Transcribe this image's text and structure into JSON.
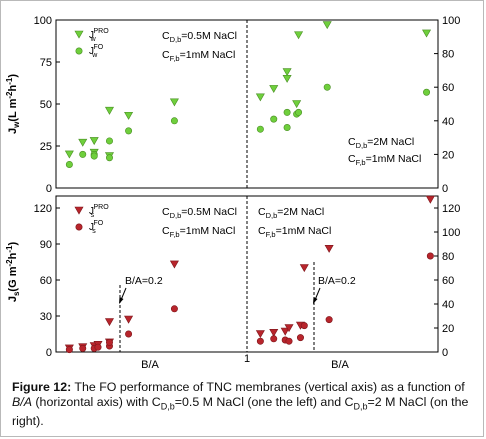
{
  "chart_data": [
    {
      "type": "scatter",
      "panel": "top-left",
      "ylabel": "J_w(L m^-2 h^-1)",
      "ylim": [
        0,
        100
      ],
      "yticks": [
        0,
        25,
        50,
        75,
        100
      ],
      "annotations": [
        "C_D,b=0.5M NaCl",
        "C_F,b=1mM NaCl"
      ],
      "series": [
        {
          "name": "J_w^PRO",
          "marker": "triangle-down",
          "color": "#6fcf3c",
          "x": [
            0.07,
            0.14,
            0.2,
            0.2,
            0.28,
            0.28,
            0.38,
            0.62
          ],
          "y": [
            20,
            27,
            28,
            21,
            19,
            46,
            43,
            51
          ]
        },
        {
          "name": "J_w^FO",
          "marker": "circle",
          "color": "#6fcf3c",
          "x": [
            0.07,
            0.14,
            0.2,
            0.2,
            0.28,
            0.28,
            0.38,
            0.62
          ],
          "y": [
            14,
            20,
            20,
            19,
            18,
            28,
            34,
            40
          ]
        }
      ]
    },
    {
      "type": "scatter",
      "panel": "top-right",
      "ylim": [
        0,
        100
      ],
      "yticks": [
        0,
        20,
        40,
        60,
        80,
        100
      ],
      "annotations": [
        "C_D,b=2M NaCl",
        "C_F,b=1mM NaCl"
      ],
      "series": [
        {
          "name": "J_w^PRO",
          "marker": "triangle-down",
          "color": "#6fcf3c",
          "x": [
            0.07,
            0.14,
            0.21,
            0.21,
            0.26,
            0.27,
            0.42,
            0.94
          ],
          "y": [
            54,
            59,
            69,
            65,
            50,
            91,
            97,
            92
          ]
        },
        {
          "name": "J_w^FO",
          "marker": "circle",
          "color": "#6fcf3c",
          "x": [
            0.07,
            0.14,
            0.21,
            0.21,
            0.26,
            0.27,
            0.42,
            0.94
          ],
          "y": [
            35,
            41,
            45,
            36,
            44,
            45,
            60,
            57
          ]
        }
      ]
    },
    {
      "type": "scatter",
      "panel": "bottom-left",
      "xlabel": "B/A",
      "ylabel": "J_s(G m^-2 h^-1)",
      "ylim": [
        0,
        130
      ],
      "yticks": [
        0,
        30,
        60,
        90,
        120
      ],
      "annotations": [
        "C_D,b=0.5M NaCl",
        "C_F,b=1mM NaCl",
        "B/A=0.2"
      ],
      "marker_line": 0.2,
      "series": [
        {
          "name": "J_s^PRO",
          "marker": "triangle-down",
          "color": "#b8252c",
          "x": [
            0.07,
            0.14,
            0.2,
            0.22,
            0.28,
            0.28,
            0.38,
            0.62
          ],
          "y": [
            3,
            4,
            5,
            6,
            8,
            25,
            27,
            73
          ]
        },
        {
          "name": "J_s^FO",
          "marker": "circle",
          "color": "#b8252c",
          "x": [
            0.07,
            0.14,
            0.2,
            0.22,
            0.28,
            0.28,
            0.38,
            0.62
          ],
          "y": [
            2,
            3,
            3,
            4,
            5,
            8,
            15,
            36
          ]
        }
      ]
    },
    {
      "type": "scatter",
      "panel": "bottom-right",
      "xlabel": "B/A",
      "ylim": [
        0,
        130
      ],
      "yticks": [
        0,
        20,
        40,
        60,
        80,
        100,
        120
      ],
      "annotations": [
        "C_D,b=2M NaCl",
        "C_F,b=1mM NaCl",
        "B/A=0.2"
      ],
      "marker_line": 0.2,
      "series": [
        {
          "name": "J_s^PRO",
          "marker": "triangle-down",
          "color": "#b8252c",
          "x": [
            0.07,
            0.14,
            0.2,
            0.22,
            0.28,
            0.3,
            0.43,
            0.96
          ],
          "y": [
            15,
            16,
            17,
            20,
            22,
            70,
            86,
            127
          ]
        },
        {
          "name": "J_s^FO",
          "marker": "circle",
          "color": "#b8252c",
          "x": [
            0.07,
            0.14,
            0.2,
            0.22,
            0.28,
            0.3,
            0.43,
            0.96
          ],
          "y": [
            9,
            11,
            10,
            9,
            12,
            22,
            27,
            80
          ]
        }
      ]
    }
  ],
  "axis": {
    "top_left_ylabel_main": "J",
    "top_left_ylabel_sub": "w",
    "top_left_ylabel_unit": "(L m",
    "top_left_ylabel_sup": "-2",
    "top_left_ylabel_end": "h",
    "bottom_left_ylabel_main": "J",
    "bottom_left_ylabel_sub": "s",
    "bottom_left_ylabel_unit": "(G m",
    "bottom_left_ylabel_sup": "-2",
    "bottom_left_ylabel_end": "h",
    "unit_sup": "-1",
    "unit_close": ")",
    "center_tick": "1",
    "x_left": "B/A",
    "x_right": "B/A"
  },
  "legend": {
    "symbol_w": "J",
    "sub_w": "w",
    "sup_pro": "PRO",
    "sup_fo": "FO",
    "symbol_s": "J",
    "sub_s": "s"
  },
  "annot": {
    "c": "C",
    "sub_db": "D,b",
    "sub_fb": "F,b",
    "eq_05": "=0.5M NaCl",
    "eq_2": "=2M NaCl",
    "eq_1mm": "=1mM NaCl",
    "ba02": "B/A=0.2"
  },
  "caption": {
    "label": "Figure 12:",
    "text_a": " The FO performance of TNC membranes (vertical axis) as a function of ",
    "text_ba": "B/A",
    "text_b": " (horizontal axis) with C",
    "sub_db": "D,b",
    "text_c": "=0.5 M NaCl (one the left) and C",
    "text_d": "=2 M NaCl (on the right)."
  }
}
